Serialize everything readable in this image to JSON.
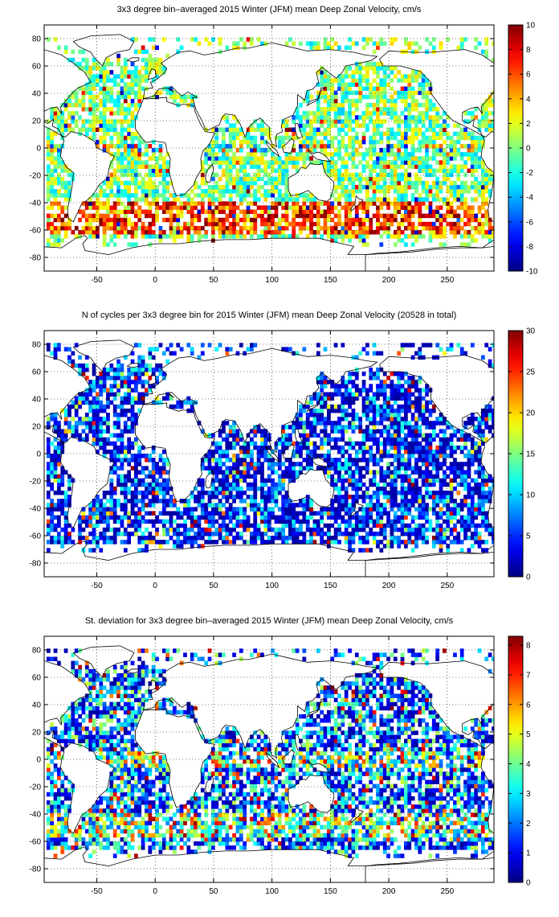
{
  "colormap": "jet",
  "land_color": "#ffffff",
  "grid": "dotted",
  "panels": [
    {
      "title": "3x3 degree bin–averaged 2015 Winter (JFM) mean Deep Zonal Velocity, cm/s",
      "chart_data": {
        "type": "heatmap",
        "xlim": [
          -95,
          290
        ],
        "ylim": [
          -90,
          90
        ],
        "xticks": [
          -50,
          0,
          50,
          100,
          150,
          200,
          250
        ],
        "yticks": [
          -80,
          -60,
          -40,
          -20,
          0,
          20,
          40,
          60,
          80
        ],
        "bin_size_deg": 3,
        "clim": [
          -10,
          10
        ],
        "colorbar_ticks": [
          -10,
          -8,
          -6,
          -4,
          -2,
          0,
          2,
          4,
          6,
          8,
          10
        ],
        "seed": 11
      }
    },
    {
      "title": "N of cycles per 3x3 degree bin for 2015 Winter (JFM) mean Deep Zonal Velocity (20528 in total)",
      "chart_data": {
        "type": "heatmap",
        "xlim": [
          -95,
          290
        ],
        "ylim": [
          -90,
          90
        ],
        "xticks": [
          -50,
          0,
          50,
          100,
          150,
          200,
          250
        ],
        "yticks": [
          -80,
          -60,
          -40,
          -20,
          0,
          20,
          40,
          60,
          80
        ],
        "bin_size_deg": 3,
        "clim": [
          0,
          30
        ],
        "colorbar_ticks": [
          0,
          5,
          10,
          15,
          20,
          25,
          30
        ],
        "total_cycles": 20528,
        "seed": 23
      }
    },
    {
      "title": "St. deviation for 3x3 degree bin–averaged 2015 Winter (JFM) mean Deep Zonal Velocity, cm/s",
      "chart_data": {
        "type": "heatmap",
        "xlim": [
          -95,
          290
        ],
        "ylim": [
          -90,
          90
        ],
        "xticks": [
          -50,
          0,
          50,
          100,
          150,
          200,
          250
        ],
        "yticks": [
          -80,
          -60,
          -40,
          -20,
          0,
          20,
          40,
          60,
          80
        ],
        "bin_size_deg": 3,
        "clim": [
          0,
          8.3
        ],
        "colorbar_ticks": [
          0,
          1,
          2,
          3,
          4,
          5,
          6,
          7,
          8
        ],
        "seed": 37
      }
    }
  ]
}
